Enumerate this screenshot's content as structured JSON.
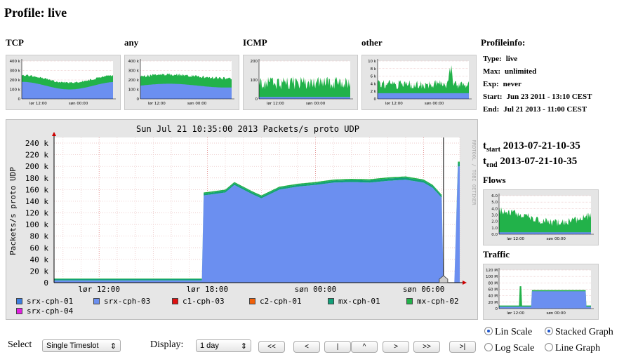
{
  "page": {
    "title": "Profile: live"
  },
  "thumbnails": [
    {
      "label": "TCP",
      "yticks": [
        "400 k",
        "300 k",
        "200 k",
        "100 k",
        "0"
      ],
      "xticks": [
        "lør 12:00",
        "søn 00:00"
      ]
    },
    {
      "label": "any",
      "yticks": [
        "400 k",
        "300 k",
        "200 k",
        "100 k",
        "0"
      ],
      "xticks": [
        "lør 12:00",
        "søn 00:00"
      ]
    },
    {
      "label": "ICMP",
      "yticks": [
        "200",
        "100",
        "0"
      ],
      "xticks": [
        "lør 12:00",
        "søn 00:00"
      ]
    },
    {
      "label": "other",
      "yticks": [
        "10 k",
        "8 k",
        "6 k",
        "4 k",
        "2 k",
        "0"
      ],
      "xticks": [
        "lør 12:00",
        "søn 00:00"
      ]
    }
  ],
  "profileinfo": {
    "title": "Profileinfo:",
    "rows": [
      {
        "key": "Type:",
        "value": "live"
      },
      {
        "key": "Max:",
        "value": "unlimited"
      },
      {
        "key": "Exp:",
        "value": "never"
      },
      {
        "key": "Start:",
        "value": "Jun 23 2011 - 13:10 CEST"
      },
      {
        "key": "End:",
        "value": "Jul 21 2013 - 11:00 CEST"
      }
    ]
  },
  "timeslot": {
    "t": "t",
    "start_sub": "start",
    "end_sub": "end",
    "start": "2013-07-21-10-35",
    "end": "2013-07-21-10-35"
  },
  "side_graphs": [
    {
      "label": "Flows",
      "yticks": [
        "6.0",
        "5.0",
        "4.0",
        "3.0",
        "2.0",
        "1.0",
        "0.0"
      ],
      "xticks": [
        "lør 12:00",
        "søn 00:00"
      ]
    },
    {
      "label": "Traffic",
      "yticks": [
        "120 M",
        "100 M",
        "80 M",
        "60 M",
        "40 M",
        "20 M",
        "0"
      ],
      "xticks": [
        "lør 12:00",
        "søn 00:00"
      ]
    }
  ],
  "main_graph": {
    "watermark": "RRDTOOL / TOBI OETIKER",
    "legend": [
      {
        "name": "srx-cph-01",
        "color": "#3d7fe0"
      },
      {
        "name": "srx-cph-03",
        "color": "#6b8ff0"
      },
      {
        "name": "c1-cph-03",
        "color": "#e01010"
      },
      {
        "name": "c2-cph-01",
        "color": "#f0600a"
      },
      {
        "name": "mx-cph-01",
        "color": "#11a079"
      },
      {
        "name": "mx-cph-02",
        "color": "#22b24a"
      },
      {
        "name": "srx-cph-04",
        "color": "#e020e0"
      }
    ]
  },
  "chart_data": {
    "type": "area",
    "title": "Sun Jul 21 10:35:00 2013 Packets/s proto UDP",
    "xlabel": "",
    "ylabel": "Packets/s proto UDP",
    "ylim": [
      0,
      240000
    ],
    "ytick_labels": [
      "0",
      "20 k",
      "40 k",
      "60 k",
      "80 k",
      "100 k",
      "120 k",
      "140 k",
      "160 k",
      "180 k",
      "200 k",
      "220 k",
      "240 k"
    ],
    "yticks": [
      0,
      20000,
      40000,
      60000,
      80000,
      100000,
      120000,
      140000,
      160000,
      180000,
      200000,
      220000,
      240000
    ],
    "x_hours": [
      9.5,
      32.0
    ],
    "xtick_labels": [
      "lør 12:00",
      "lør 18:00",
      "søn 00:00",
      "søn 06:00"
    ],
    "xtick_hours": [
      12,
      18,
      24,
      30
    ],
    "selected_time_hours": 31.1,
    "stacked": true,
    "grid": true,
    "series": [
      {
        "name": "srx-cph-03",
        "color": "#6b8ff0",
        "x": [
          9.5,
          17.7,
          17.8,
          18.3,
          19.0,
          19.5,
          20.5,
          21.0,
          22.0,
          23.0,
          24.0,
          25.0,
          26.0,
          27.0,
          28.0,
          29.0,
          30.0,
          30.5,
          31.0,
          31.1,
          31.7,
          31.9,
          32.0
        ],
        "y": [
          4000,
          4000,
          150000,
          152000,
          155000,
          168000,
          152000,
          145000,
          160000,
          165000,
          168000,
          172000,
          173000,
          172000,
          175000,
          177000,
          172000,
          163000,
          146000,
          0,
          0,
          200000,
          200000
        ]
      },
      {
        "name": "mx-cph-01",
        "color": "#11a079",
        "x": [
          9.5,
          17.7,
          17.8,
          19.0,
          24.0,
          28.0,
          31.0,
          31.1,
          31.7,
          31.9,
          32.0
        ],
        "y": [
          2000,
          2000,
          3000,
          3000,
          3000,
          4000,
          3000,
          0,
          0,
          5000,
          5000
        ]
      },
      {
        "name": "mx-cph-02",
        "color": "#22b24a",
        "x": [
          9.5,
          17.7,
          17.8,
          24.0,
          31.0,
          31.1,
          31.7,
          31.9,
          32.0
        ],
        "y": [
          1000,
          1000,
          2000,
          2000,
          2000,
          0,
          0,
          3000,
          3000
        ]
      }
    ]
  },
  "controls": {
    "select_label": "Select",
    "select_value": "Single Timeslot",
    "display_label": "Display:",
    "display_value": "1 day",
    "nav_buttons": [
      "<<",
      "<",
      "|",
      "^",
      ">",
      ">>",
      ">|"
    ],
    "scale_options": [
      "Lin Scale",
      "Log Scale"
    ],
    "scale_selected": "Lin Scale",
    "graph_options": [
      "Stacked Graph",
      "Line Graph"
    ],
    "graph_selected": "Stacked Graph"
  }
}
